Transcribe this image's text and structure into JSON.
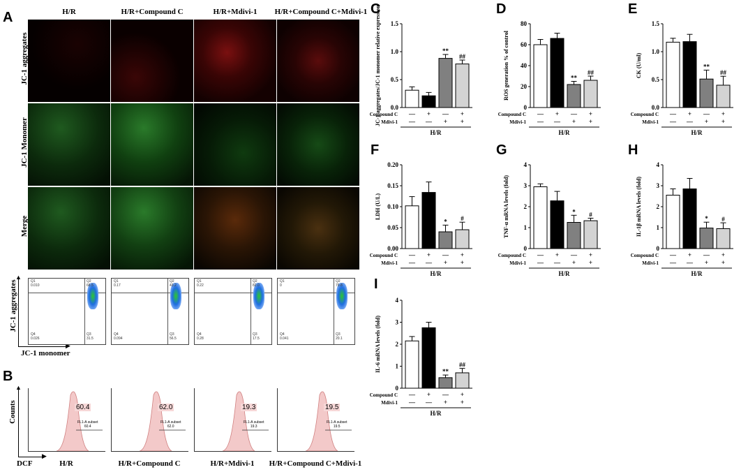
{
  "panels": {
    "A": "A",
    "B": "B",
    "C": "C",
    "D": "D",
    "E": "E",
    "F": "F",
    "G": "G",
    "H": "H",
    "I": "I"
  },
  "microscopy": {
    "columns": [
      "H/R",
      "H/R+Compound C",
      "H/R+Mdivi-1",
      "H/R+Compound C+Mdivi-1"
    ],
    "rows": [
      "JC-1 aggregates",
      "JC-1 Monomer",
      "Merge"
    ]
  },
  "flow_jc1": {
    "ylabel": "JC-1 aggregates",
    "xlabel": "JC-1 monomer",
    "plots": [
      {
        "q1": "Q1",
        "q1v": "0.010",
        "q2": "Q2",
        "q2v": "68.5",
        "q3": "Q3",
        "q3v": "31.5",
        "q4": "Q4",
        "q4v": "0.026"
      },
      {
        "q1": "Q1",
        "q1v": "0.17",
        "q2": "Q2",
        "q2v": "43.2",
        "q3": "Q3",
        "q3v": "56.5",
        "q4": "Q4",
        "q4v": "0.094"
      },
      {
        "q1": "Q1",
        "q1v": "0.22",
        "q2": "Q2",
        "q2v": "82.0",
        "q3": "Q3",
        "q3v": "17.5",
        "q4": "Q4",
        "q4v": "0.28"
      },
      {
        "q1": "Q1",
        "q1v": "0",
        "q2": "Q2",
        "q2v": "79.8",
        "q3": "Q3",
        "q3v": "20.1",
        "q4": "Q4",
        "q4v": "0.041"
      }
    ]
  },
  "flow_dcf": {
    "ylabel": "Counts",
    "xlabel": "DCF",
    "plots": [
      {
        "value": "60.4",
        "subset": "FL1-A subset",
        "subset_value": "60.4",
        "caption": "H/R"
      },
      {
        "value": "62.0",
        "subset": "FL1-A subset",
        "subset_value": "62.0",
        "caption": "H/R+Compound C"
      },
      {
        "value": "19.3",
        "subset": "FL1-A subset",
        "subset_value": "19.3",
        "caption": "H/R+Mdivi-1"
      },
      {
        "value": "19.5",
        "subset": "FL1-A subset",
        "subset_value": "19.5",
        "caption": "H/R+Compound C+Mdivi-1"
      }
    ]
  },
  "treatment_table": {
    "row1_label": "Compound C",
    "row2_label": "Mdivi-1",
    "row1": [
      "—",
      "+",
      "—",
      "+"
    ],
    "row2": [
      "—",
      "—",
      "+",
      "+"
    ],
    "group": "H/R"
  },
  "colors": {
    "bar1": "#ffffff",
    "bar2": "#000000",
    "bar3": "#808080",
    "bar4": "#d3d3d3"
  },
  "chart_data": [
    {
      "id": "C",
      "type": "bar",
      "ylabel": "JC-1 aggregates/JC-1 monomer relative expression",
      "ylim": [
        0,
        1.5
      ],
      "ticks": [
        "0.0",
        "0.5",
        "1.0",
        "1.5"
      ],
      "tickvals": [
        0,
        0.5,
        1.0,
        1.5
      ],
      "values": [
        0.31,
        0.21,
        0.88,
        0.78
      ],
      "errors": [
        0.06,
        0.06,
        0.07,
        0.07
      ],
      "sig": [
        "",
        "",
        "**",
        "##"
      ]
    },
    {
      "id": "D",
      "type": "bar",
      "ylabel": "ROS generation % of control",
      "ylim": [
        0,
        80
      ],
      "ticks": [
        "0",
        "20",
        "40",
        "60",
        "80"
      ],
      "tickvals": [
        0,
        20,
        40,
        60,
        80
      ],
      "values": [
        60,
        66,
        22,
        26
      ],
      "errors": [
        5,
        5,
        3,
        4
      ],
      "sig": [
        "",
        "",
        "**",
        "##"
      ]
    },
    {
      "id": "E",
      "type": "bar",
      "ylabel": "CK (U/ml)",
      "ylim": [
        0,
        1.5
      ],
      "ticks": [
        "0.0",
        "0.5",
        "1.0",
        "1.5"
      ],
      "tickvals": [
        0,
        0.5,
        1.0,
        1.5
      ],
      "values": [
        1.17,
        1.18,
        0.51,
        0.4
      ],
      "errors": [
        0.07,
        0.13,
        0.16,
        0.16
      ],
      "sig": [
        "",
        "",
        "**",
        "##"
      ]
    },
    {
      "id": "F",
      "type": "bar",
      "ylabel": "LDH (U/L)",
      "ylim": [
        0,
        0.2
      ],
      "ticks": [
        "0.00",
        "0.05",
        "0.10",
        "0.15",
        "0.20"
      ],
      "tickvals": [
        0,
        0.05,
        0.1,
        0.15,
        0.2
      ],
      "values": [
        0.102,
        0.134,
        0.04,
        0.045
      ],
      "errors": [
        0.022,
        0.025,
        0.016,
        0.018
      ],
      "sig": [
        "",
        "",
        "*",
        "#"
      ]
    },
    {
      "id": "G",
      "type": "bar",
      "ylabel": "TNF-α mRNA levels (fold)",
      "ylim": [
        0,
        4
      ],
      "ticks": [
        "0",
        "1",
        "2",
        "3",
        "4"
      ],
      "tickvals": [
        0,
        1,
        2,
        3,
        4
      ],
      "values": [
        2.95,
        2.28,
        1.25,
        1.33
      ],
      "errors": [
        0.14,
        0.45,
        0.34,
        0.12
      ],
      "sig": [
        "",
        "",
        "*",
        "#"
      ]
    },
    {
      "id": "H",
      "type": "bar",
      "ylabel": "IL-1β mRNA levels (fold)",
      "ylim": [
        0,
        4
      ],
      "ticks": [
        "0",
        "1",
        "2",
        "3",
        "4"
      ],
      "tickvals": [
        0,
        1,
        2,
        3,
        4
      ],
      "values": [
        2.55,
        2.85,
        0.98,
        0.95
      ],
      "errors": [
        0.3,
        0.5,
        0.28,
        0.28
      ],
      "sig": [
        "",
        "",
        "*",
        "#"
      ]
    },
    {
      "id": "I",
      "type": "bar",
      "ylabel": "IL-6 mRNA levels (fold)",
      "ylim": [
        0,
        4
      ],
      "ticks": [
        "0",
        "1",
        "2",
        "3",
        "4"
      ],
      "tickvals": [
        0,
        1,
        2,
        3,
        4
      ],
      "values": [
        2.15,
        2.75,
        0.48,
        0.7
      ],
      "errors": [
        0.2,
        0.25,
        0.12,
        0.2
      ],
      "sig": [
        "",
        "",
        "**",
        "##"
      ]
    }
  ]
}
